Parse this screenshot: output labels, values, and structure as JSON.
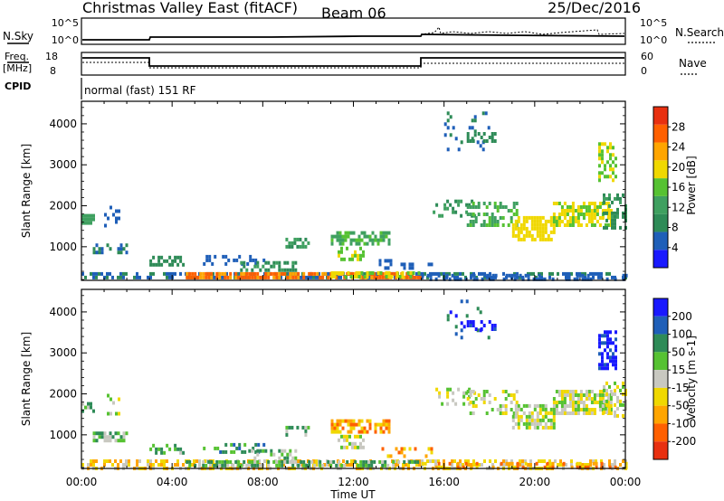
{
  "header": {
    "title": "Christmas Valley East (fitACF)",
    "beam": "Beam 06",
    "date": "25/Dec/2016"
  },
  "panels": {
    "nsky_label": "N.Sky",
    "nsky_ticks": [
      "10^5",
      "10^0"
    ],
    "nsearch_label": "N.Search",
    "nsearch_ticks": [
      "10^5",
      "10^0"
    ],
    "freq_label": "Freq.",
    "freq_unit": "[MHz]",
    "freq_ticks": [
      "18",
      "8"
    ],
    "nave_label": "Nave",
    "nave_ticks": [
      "60",
      "0"
    ],
    "cpid_label": "CPID",
    "cpid_text": "normal (fast) 151 RF"
  },
  "colors": {
    "power": [
      "#1919ff",
      "#1f5fb8",
      "#2e8b57",
      "#3fa060",
      "#56c232",
      "#f0d800",
      "#ffa500",
      "#ff6000",
      "#e83010"
    ],
    "velocity": [
      "#1919ff",
      "#1f5fb8",
      "#2e8b57",
      "#56c232",
      "#c8c8c0",
      "#f0d800",
      "#ffa500",
      "#ff6000",
      "#e83010"
    ]
  },
  "chart_data": [
    {
      "type": "heatmap",
      "name": "Power",
      "ylabel": "Slant Range [km]",
      "yticks": [
        1000,
        2000,
        3000,
        4000
      ],
      "ylim": [
        180,
        4550
      ],
      "xlim": [
        0,
        24
      ],
      "colorbar_label": "Power [dB]",
      "colorbar_ticks": [
        4,
        8,
        12,
        16,
        20,
        24,
        28
      ],
      "colorbar_range": [
        0,
        32
      ],
      "regions": [
        {
          "t0": 0.0,
          "t1": 24.0,
          "r0": 220,
          "r1": 380,
          "v": 7,
          "d": 0.55,
          "seed": 1
        },
        {
          "t0": 4.6,
          "t1": 15.0,
          "r0": 260,
          "r1": 380,
          "v": 25,
          "d": 0.75,
          "seed": 2
        },
        {
          "t0": 11.0,
          "t1": 15.0,
          "r0": 260,
          "r1": 400,
          "v": 18,
          "d": 0.6,
          "seed": 3
        },
        {
          "t0": 0.0,
          "t1": 0.5,
          "r0": 1580,
          "r1": 1800,
          "v": 12,
          "d": 0.75,
          "seed": 4
        },
        {
          "t0": 0.5,
          "t1": 2.0,
          "r0": 850,
          "r1": 1080,
          "v": 8,
          "d": 0.6,
          "seed": 5
        },
        {
          "t0": 1.0,
          "t1": 1.7,
          "r0": 1500,
          "r1": 2000,
          "v": 5,
          "d": 0.25,
          "seed": 6
        },
        {
          "t0": 3.0,
          "t1": 4.5,
          "r0": 600,
          "r1": 780,
          "v": 9,
          "d": 0.5,
          "seed": 7
        },
        {
          "t0": 5.0,
          "t1": 8.0,
          "r0": 580,
          "r1": 800,
          "v": 5,
          "d": 0.35,
          "seed": 8
        },
        {
          "t0": 7.0,
          "t1": 9.5,
          "r0": 450,
          "r1": 650,
          "v": 10,
          "d": 0.45,
          "seed": 9
        },
        {
          "t0": 9.0,
          "t1": 10.0,
          "r0": 1000,
          "r1": 1220,
          "v": 11,
          "d": 0.6,
          "seed": 10
        },
        {
          "t0": 11.0,
          "t1": 13.6,
          "r0": 1100,
          "r1": 1380,
          "v": 14,
          "d": 0.65,
          "seed": 11
        },
        {
          "t0": 11.3,
          "t1": 12.4,
          "r0": 680,
          "r1": 1000,
          "v": 17,
          "d": 0.55,
          "seed": 12
        },
        {
          "t0": 13.0,
          "t1": 15.5,
          "r0": 500,
          "r1": 700,
          "v": 6,
          "d": 0.3,
          "seed": 13
        },
        {
          "t0": 15.5,
          "t1": 17.3,
          "r0": 1750,
          "r1": 2150,
          "v": 11,
          "d": 0.3,
          "seed": 14
        },
        {
          "t0": 16.0,
          "t1": 18.0,
          "r0": 3400,
          "r1": 4300,
          "v": 7,
          "d": 0.12,
          "seed": 15
        },
        {
          "t0": 17.0,
          "t1": 18.2,
          "r0": 3550,
          "r1": 3800,
          "v": 9,
          "d": 0.45,
          "seed": 16
        },
        {
          "t0": 17.0,
          "t1": 19.2,
          "r0": 1500,
          "r1": 2100,
          "v": 14,
          "d": 0.45,
          "seed": 17
        },
        {
          "t0": 19.0,
          "t1": 20.8,
          "r0": 1150,
          "r1": 1750,
          "v": 20,
          "d": 0.7,
          "seed": 18
        },
        {
          "t0": 20.8,
          "t1": 23.4,
          "r0": 1500,
          "r1": 2100,
          "v": 18,
          "d": 0.65,
          "seed": 19
        },
        {
          "t0": 22.8,
          "t1": 23.6,
          "r0": 2650,
          "r1": 3550,
          "v": 17,
          "d": 0.55,
          "seed": 20
        },
        {
          "t0": 23.0,
          "t1": 24.0,
          "r0": 1450,
          "r1": 2300,
          "v": 10,
          "d": 0.4,
          "seed": 21
        },
        {
          "t0": 15.0,
          "t1": 24.0,
          "r0": 220,
          "r1": 340,
          "v": 6,
          "d": 0.4,
          "seed": 22
        }
      ]
    },
    {
      "type": "heatmap",
      "name": "Velocity",
      "ylabel": "Slant Range [km]",
      "yticks": [
        1000,
        2000,
        3000,
        4000
      ],
      "ylim": [
        180,
        4550
      ],
      "xlim": [
        0,
        24
      ],
      "xticks": [
        "00:00",
        "04:00",
        "08:00",
        "12:00",
        "16:00",
        "20:00",
        "00:00"
      ],
      "xlabel": "Time UT",
      "colorbar_label": "Velocity [m s-1]",
      "colorbar_ticks": [
        "200",
        "100",
        "50",
        "15",
        "-15",
        "-50",
        "-100",
        "-200"
      ],
      "regions": [
        {
          "t0": 0.0,
          "t1": 24.0,
          "r0": 220,
          "r1": 400,
          "v": 5,
          "d": 0.5,
          "seed": 31
        },
        {
          "t0": 4.6,
          "t1": 15.0,
          "r0": 260,
          "r1": 380,
          "v": 3,
          "d": 0.6,
          "seed": 32
        },
        {
          "t0": 0.0,
          "t1": 0.5,
          "r0": 1580,
          "r1": 1800,
          "v": 3,
          "d": 0.6,
          "seed": 33
        },
        {
          "t0": 0.5,
          "t1": 2.0,
          "r0": 850,
          "r1": 1080,
          "v": 3,
          "d": 0.55,
          "seed": 34
        },
        {
          "t0": 1.0,
          "t1": 1.7,
          "r0": 1500,
          "r1": 2000,
          "v": 4,
          "d": 0.2,
          "seed": 35
        },
        {
          "t0": 3.0,
          "t1": 4.5,
          "r0": 600,
          "r1": 780,
          "v": 3,
          "d": 0.45,
          "seed": 36
        },
        {
          "t0": 5.0,
          "t1": 8.0,
          "r0": 580,
          "r1": 800,
          "v": 2,
          "d": 0.35,
          "seed": 37
        },
        {
          "t0": 7.0,
          "t1": 9.5,
          "r0": 450,
          "r1": 650,
          "v": 3,
          "d": 0.4,
          "seed": 38
        },
        {
          "t0": 9.0,
          "t1": 10.0,
          "r0": 1000,
          "r1": 1220,
          "v": 3,
          "d": 0.55,
          "seed": 39
        },
        {
          "t0": 11.0,
          "t1": 13.6,
          "r0": 1100,
          "r1": 1380,
          "v": 6,
          "d": 0.6,
          "seed": 40
        },
        {
          "t0": 11.3,
          "t1": 12.4,
          "r0": 680,
          "r1": 1000,
          "v": 4,
          "d": 0.55,
          "seed": 41
        },
        {
          "t0": 13.0,
          "t1": 15.5,
          "r0": 500,
          "r1": 700,
          "v": 6,
          "d": 0.3,
          "seed": 42
        },
        {
          "t0": 15.5,
          "t1": 17.3,
          "r0": 1750,
          "r1": 2150,
          "v": 4,
          "d": 0.25,
          "seed": 43
        },
        {
          "t0": 16.0,
          "t1": 18.0,
          "r0": 3400,
          "r1": 4300,
          "v": 1,
          "d": 0.12,
          "seed": 44
        },
        {
          "t0": 17.0,
          "t1": 18.2,
          "r0": 3550,
          "r1": 3800,
          "v": 0,
          "d": 0.45,
          "seed": 45
        },
        {
          "t0": 17.0,
          "t1": 19.2,
          "r0": 1500,
          "r1": 2100,
          "v": 4,
          "d": 0.35,
          "seed": 46
        },
        {
          "t0": 19.0,
          "t1": 20.8,
          "r0": 1150,
          "r1": 1750,
          "v": 4,
          "d": 0.7,
          "seed": 47
        },
        {
          "t0": 20.8,
          "t1": 23.4,
          "r0": 1500,
          "r1": 2100,
          "v": 4,
          "d": 0.7,
          "seed": 48
        },
        {
          "t0": 22.8,
          "t1": 23.6,
          "r0": 2650,
          "r1": 3550,
          "v": 0,
          "d": 0.6,
          "seed": 49
        },
        {
          "t0": 23.0,
          "t1": 24.0,
          "r0": 1450,
          "r1": 2300,
          "v": 4,
          "d": 0.35,
          "seed": 50
        },
        {
          "t0": 15.0,
          "t1": 24.0,
          "r0": 220,
          "r1": 340,
          "v": 6,
          "d": 0.35,
          "seed": 51
        }
      ]
    }
  ]
}
